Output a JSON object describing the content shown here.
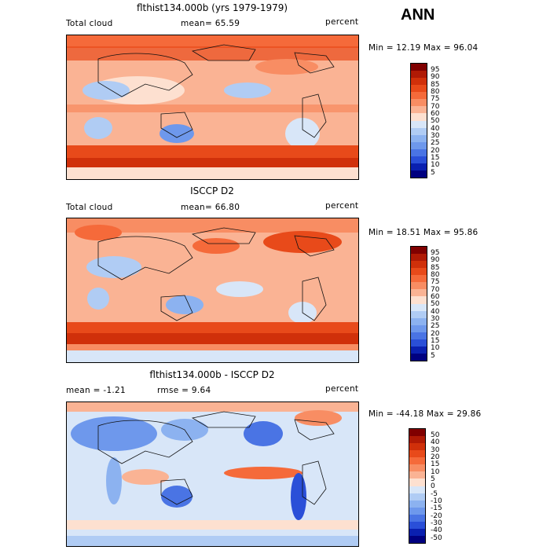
{
  "season": "ANN",
  "panels": [
    {
      "title": "flthist134.000b (yrs 1979-1979)",
      "left_label": "Total cloud",
      "mid_label": "mean=  65.59",
      "right_label": "percent",
      "minmax": "Min =  12.19 Max =  96.04",
      "kind": "field",
      "colorbar_labels": [
        "95",
        "90",
        "85",
        "80",
        "75",
        "70",
        "60",
        "50",
        "40",
        "30",
        "25",
        "20",
        "15",
        "10",
        "5"
      ]
    },
    {
      "title": "ISCCP D2",
      "left_label": "Total cloud",
      "mid_label": "mean=  66.80",
      "right_label": "percent",
      "minmax": "Min =  18.51 Max =  95.86",
      "kind": "field",
      "colorbar_labels": [
        "95",
        "90",
        "85",
        "80",
        "75",
        "70",
        "60",
        "50",
        "40",
        "30",
        "25",
        "20",
        "15",
        "10",
        "5"
      ]
    },
    {
      "title": "flthist134.000b - ISCCP D2",
      "left_label": "mean =  -1.21",
      "mid_label": "rmse =   9.64",
      "right_label": "percent",
      "minmax": "Min = -44.18 Max =  29.86",
      "kind": "diff",
      "colorbar_labels": [
        "50",
        "40",
        "30",
        "20",
        "15",
        "10",
        "5",
        "0",
        "-5",
        "-10",
        "-15",
        "-20",
        "-30",
        "-40",
        "-50"
      ]
    }
  ],
  "colors": {
    "field_scale": [
      "#800000",
      "#b01a05",
      "#d0300a",
      "#e84a1a",
      "#f56a3a",
      "#f88d63",
      "#fab394",
      "#fde0d0",
      "#d8e6f8",
      "#b0ccf4",
      "#8cb2f0",
      "#6e98ec",
      "#4a74e4",
      "#2a4fd8",
      "#0a20b0",
      "#000080"
    ],
    "diff_scale": [
      "#800000",
      "#b01a05",
      "#d0300a",
      "#e84a1a",
      "#f56a3a",
      "#f88d63",
      "#fab394",
      "#fde0d0",
      "#d8e6f8",
      "#b0ccf4",
      "#8cb2f0",
      "#6e98ec",
      "#4a74e4",
      "#2a4fd8",
      "#0a20b0",
      "#000080"
    ]
  }
}
